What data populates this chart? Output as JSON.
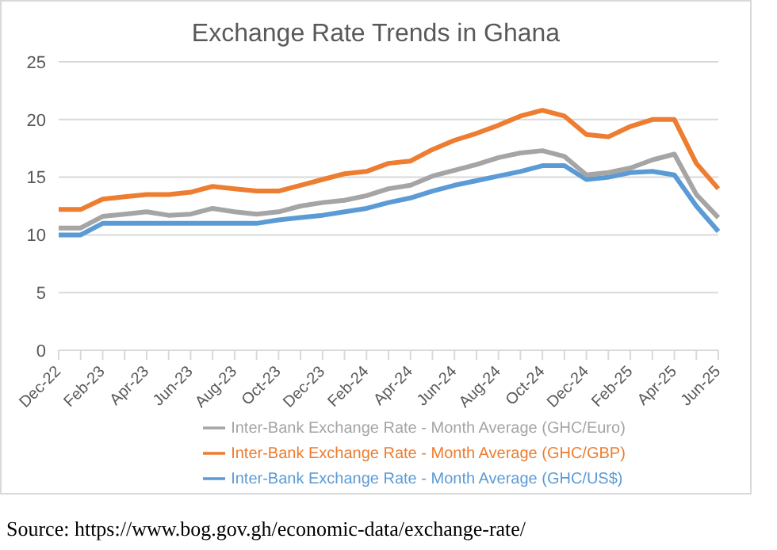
{
  "chart_data": {
    "type": "line",
    "title": "Exchange Rate Trends in Ghana",
    "categories": [
      "Dec-22",
      null,
      "Feb-23",
      null,
      "Apr-23",
      null,
      "Jun-23",
      null,
      "Aug-23",
      null,
      "Oct-23",
      null,
      "Dec-23",
      null,
      "Feb-24",
      null,
      "Apr-24",
      null,
      "Jun-24",
      null,
      "Aug-24",
      null,
      "Oct-24",
      null,
      "Dec-24",
      null,
      "Feb-25",
      null,
      "Apr-25",
      null,
      "Jun-25"
    ],
    "series": [
      {
        "name": "Inter-Bank Exchange Rate - Month Average (GHC/US$)",
        "color": "#5b9bd5",
        "values": [
          10,
          10,
          11,
          11,
          11,
          11,
          11,
          11,
          11,
          11,
          11.3,
          11.5,
          11.7,
          12,
          12.3,
          12.8,
          13.2,
          13.8,
          14.3,
          14.7,
          15.1,
          15.5,
          16,
          16,
          14.8,
          15,
          15.4,
          15.5,
          15.2,
          12.5,
          10.3
        ]
      },
      {
        "name": "Inter-Bank Exchange Rate - Month Average (GHC/GBP)",
        "color": "#ed7d31",
        "values": [
          12.2,
          12.2,
          13.1,
          13.3,
          13.5,
          13.5,
          13.7,
          14.2,
          14,
          13.8,
          13.8,
          14.3,
          14.8,
          15.3,
          15.5,
          16.2,
          16.4,
          17.4,
          18.2,
          18.8,
          19.5,
          20.3,
          20.8,
          20.3,
          18.7,
          18.5,
          19.4,
          20,
          20,
          16.2,
          14
        ]
      },
      {
        "name": "Inter-Bank Exchange Rate - Month Average (GHC/Euro)",
        "color": "#a5a5a5",
        "values": [
          10.6,
          10.6,
          11.6,
          11.8,
          12,
          11.7,
          11.8,
          12.3,
          12,
          11.8,
          12,
          12.5,
          12.8,
          13,
          13.4,
          14,
          14.3,
          15.1,
          15.6,
          16.1,
          16.7,
          17.1,
          17.3,
          16.8,
          15.2,
          15.4,
          15.8,
          16.5,
          17,
          13.5,
          11.5
        ]
      }
    ],
    "ylim": [
      0,
      25
    ],
    "yticks": [
      0,
      5,
      10,
      15,
      20,
      25
    ],
    "grid": "y",
    "legend": "bottom",
    "marker": "none",
    "line_style": "solid",
    "annotations": [
      "Source: https://www.bog.gov.gh/economic-data/exchange-rate/"
    ]
  }
}
